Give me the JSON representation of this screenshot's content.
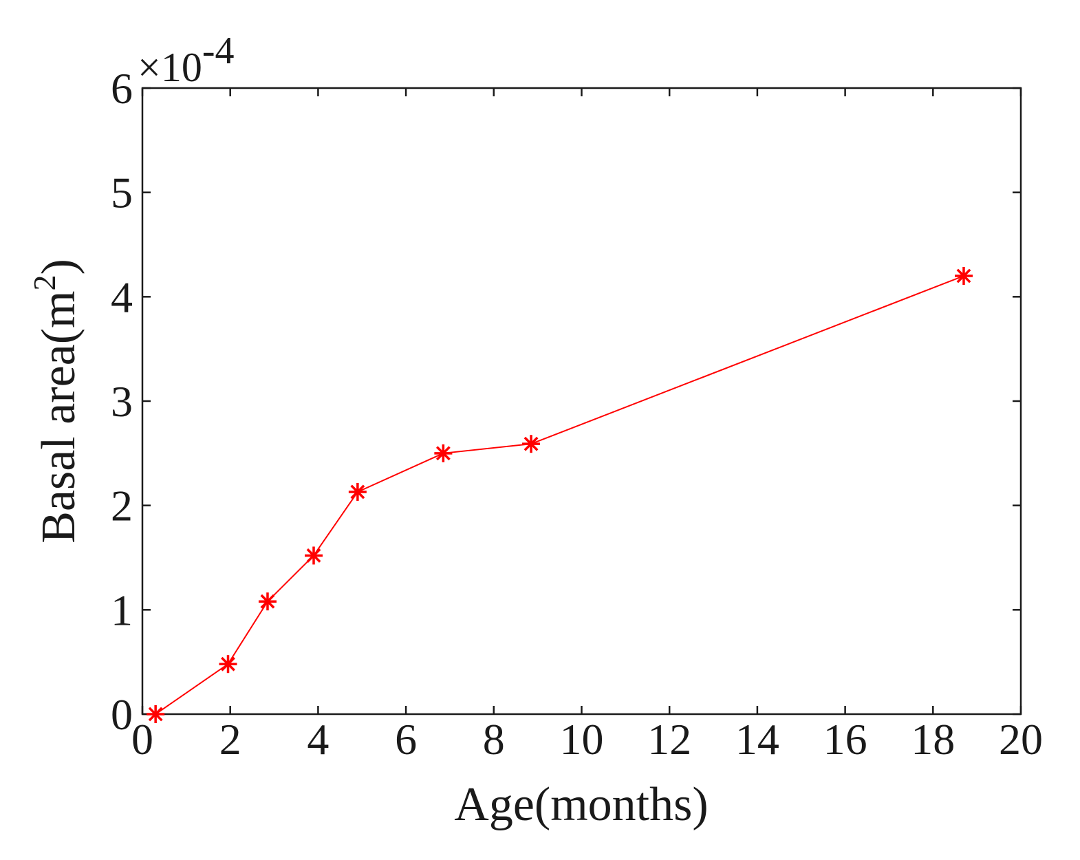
{
  "chart_data": {
    "type": "line",
    "xlabel": "Age(months)",
    "ylabel": "Basal area(m",
    "ylabel_superscript": "2",
    "ylabel_suffix": ")",
    "y_multiplier": {
      "base": "×10",
      "exponent": "-4"
    },
    "xlim": [
      0,
      20
    ],
    "ylim": [
      0,
      6
    ],
    "xticks": [
      "0",
      "2",
      "4",
      "6",
      "8",
      "10",
      "12",
      "14",
      "16",
      "18",
      "20"
    ],
    "yticks": [
      "0",
      "1",
      "2",
      "3",
      "4",
      "5",
      "6"
    ],
    "grid": false,
    "series": [
      {
        "color": "#ff0000",
        "marker": "asterisk",
        "x": [
          0.3,
          1.95,
          2.85,
          3.9,
          4.9,
          6.85,
          8.85,
          18.7
        ],
        "y": [
          0.0,
          0.48,
          1.08,
          1.52,
          2.13,
          2.5,
          2.59,
          4.2
        ]
      }
    ]
  }
}
